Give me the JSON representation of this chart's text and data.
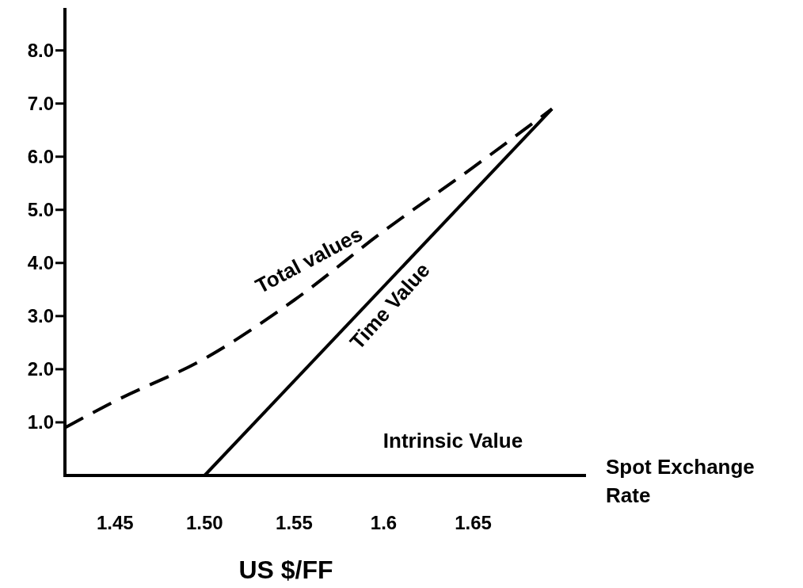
{
  "chart_data": {
    "type": "line",
    "xlabel": "US $/FF",
    "xlim": [
      1.422,
      1.713
    ],
    "ylim": [
      0,
      8.8
    ],
    "xticks": [
      1.45,
      {
        "value": 1.5,
        "label": "1.50"
      },
      1.55,
      1.6,
      1.65
    ],
    "yticks": [
      {
        "value": 1,
        "label": "1.0"
      },
      {
        "value": 2,
        "label": "2.0"
      },
      {
        "value": 3,
        "label": "3.0"
      },
      {
        "value": 4,
        "label": "4.0"
      },
      {
        "value": 5,
        "label": "5.0"
      },
      {
        "value": 6,
        "label": "6.0"
      },
      {
        "value": 7,
        "label": "7.0"
      },
      {
        "value": 8,
        "label": "8.0"
      }
    ],
    "grid": false,
    "marker": "none",
    "series": [
      {
        "color": "#000000",
        "line_style": "dashed",
        "x": [
          1.422,
          1.45,
          1.5,
          1.55,
          1.6,
          1.65,
          1.694
        ],
        "values": [
          0.9,
          1.4,
          2.2,
          3.3,
          4.6,
          5.8,
          6.9
        ]
      },
      {
        "color": "#000000",
        "line_style": "solid",
        "x": [
          1.5,
          1.694
        ],
        "values": [
          0,
          6.9
        ]
      }
    ],
    "annotations": [
      "Total values",
      "Time Value",
      "Intrinsic Value",
      "Spot Exchange Rate"
    ]
  }
}
